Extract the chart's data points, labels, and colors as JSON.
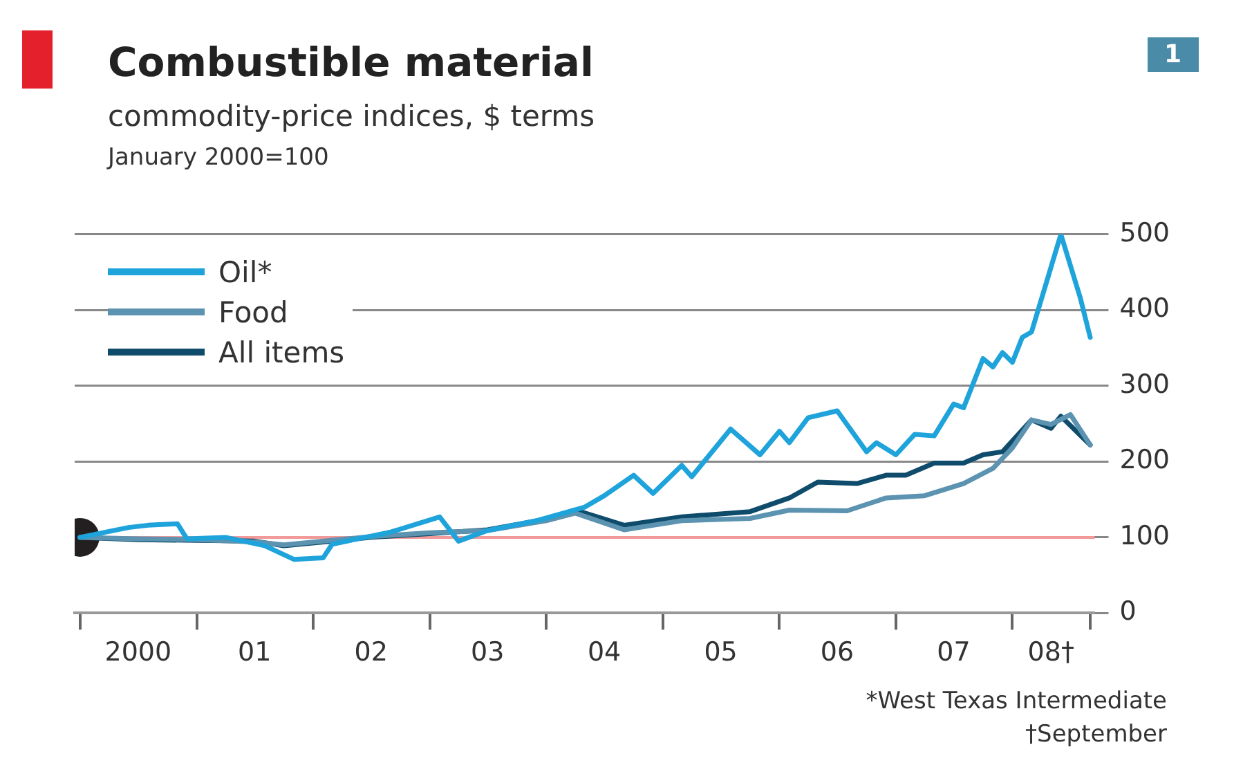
{
  "chart_data": {
    "type": "line",
    "title": "Combustible material",
    "subtitle": "commodity-price indices, $ terms",
    "ylabel": "January 2000=100",
    "annotations": [
      "1",
      "*West Texas Intermediate",
      "†September"
    ],
    "xlim": [
      "1999-12-15",
      "2008-09-15"
    ],
    "ylim": [
      0,
      500
    ],
    "yticks": [
      0,
      100,
      200,
      300,
      400,
      500
    ],
    "xticks": [
      {
        "value": "2000",
        "label": null
      },
      {
        "value": "2000-07",
        "label": "2000"
      },
      {
        "value": "2001",
        "label": null
      },
      {
        "value": "2001-07",
        "label": "01"
      },
      {
        "value": "2002",
        "label": null
      },
      {
        "value": "2002-07",
        "label": "02"
      },
      {
        "value": "2003",
        "label": null
      },
      {
        "value": "2003-07",
        "label": "03"
      },
      {
        "value": "2004",
        "label": null
      },
      {
        "value": "2004-07",
        "label": "04"
      },
      {
        "value": "2005",
        "label": null
      },
      {
        "value": "2005-07",
        "label": "05"
      },
      {
        "value": "2006",
        "label": null
      },
      {
        "value": "2006-07",
        "label": "06"
      },
      {
        "value": "2007",
        "label": null
      },
      {
        "value": "2007-07",
        "label": "07"
      },
      {
        "value": "2008",
        "label": null
      },
      {
        "value": "2008-05",
        "label": "08†"
      },
      {
        "value": "2008-09",
        "label": null
      }
    ],
    "grid": "y",
    "legend": "top left",
    "line_style": "solid",
    "marker": "none",
    "ref_lines": [
      {
        "axis": "y",
        "value": 100,
        "label": null,
        "color": "#f29a9a"
      }
    ],
    "series": [
      {
        "name": "Oil*",
        "color": "#1fa3db",
        "x": [
          "2000-01",
          "2000-06",
          "2000-08",
          "2000-11",
          "2000-12",
          "2001-04",
          "2001-08",
          "2001-11",
          "2002-02",
          "2002-03",
          "2002-09",
          "2003-02",
          "2003-04",
          "2003-07",
          "2003-12",
          "2004-05",
          "2004-07",
          "2004-10",
          "2004-12",
          "2005-03",
          "2005-04",
          "2005-08",
          "2005-11",
          "2006-01",
          "2006-02",
          "2006-04",
          "2006-07",
          "2006-10",
          "2006-11",
          "2007-01",
          "2007-03",
          "2007-05",
          "2007-07",
          "2007-08",
          "2007-10",
          "2007-11",
          "2007-12",
          "2008-01",
          "2008-02",
          "2008-03",
          "2008-06",
          "2008-08",
          "2008-09"
        ],
        "values": [
          100,
          113,
          116,
          118,
          98,
          100,
          89,
          71,
          73,
          91,
          107,
          127,
          95,
          109,
          122,
          140,
          155,
          182,
          158,
          195,
          180,
          243,
          209,
          240,
          225,
          258,
          267,
          213,
          225,
          209,
          236,
          234,
          276,
          271,
          336,
          325,
          344,
          331,
          364,
          371,
          500,
          416,
          364
        ]
      },
      {
        "name": "Food",
        "color": "#5b93b0",
        "x": [
          "2000-01",
          "2000-07",
          "2001-01",
          "2001-07",
          "2001-10",
          "2002-07",
          "2003-01",
          "2003-07",
          "2004-01",
          "2004-04",
          "2004-09",
          "2005-03",
          "2005-10",
          "2006-02",
          "2006-08",
          "2006-12",
          "2007-04",
          "2007-08",
          "2007-11",
          "2008-01",
          "2008-03",
          "2008-05",
          "2008-07",
          "2008-09"
        ],
        "values": [
          100,
          98,
          97,
          94,
          90,
          101,
          106,
          109,
          122,
          132,
          110,
          122,
          125,
          136,
          135,
          152,
          155,
          171,
          191,
          218,
          255,
          249,
          262,
          222
        ]
      },
      {
        "name": "All items",
        "color": "#0f4c6b",
        "x": [
          "2000-01",
          "2000-07",
          "2001-01",
          "2001-07",
          "2001-10",
          "2002-07",
          "2003-01",
          "2003-07",
          "2004-01",
          "2004-04",
          "2004-09",
          "2005-03",
          "2005-10",
          "2006-02",
          "2006-05",
          "2006-09",
          "2006-12",
          "2007-02",
          "2007-05",
          "2007-08",
          "2007-10",
          "2007-12",
          "2008-03",
          "2008-05",
          "2008-06",
          "2008-09"
        ],
        "values": [
          100,
          97,
          96,
          95,
          89,
          100,
          105,
          110,
          124,
          136,
          116,
          127,
          134,
          152,
          173,
          171,
          182,
          182,
          198,
          198,
          209,
          213,
          255,
          244,
          260,
          222
        ]
      },
      {
        "type": "scatter",
        "color": "#231f20",
        "x": [
          "2000-01"
        ],
        "values": [
          100
        ],
        "marker": "circle"
      }
    ]
  }
}
